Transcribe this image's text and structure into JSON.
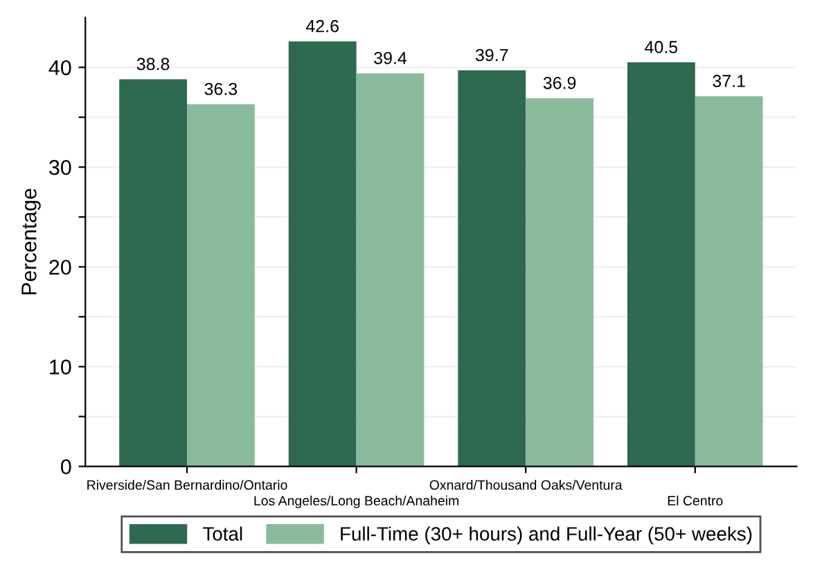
{
  "chart_data": {
    "type": "bar",
    "ylabel": "Percentage",
    "categories": [
      "Riverside/San Bernardino/Ontario",
      "Los Angeles/Long Beach/Anaheim",
      "Oxnard/Thousand Oaks/Ventura",
      "El Centro"
    ],
    "series": [
      {
        "name": "Total",
        "color": "#2d6a4f",
        "values": [
          38.8,
          42.6,
          39.7,
          40.5
        ]
      },
      {
        "name": "Full-Time (30+ hours) and Full-Year (50+ weeks)",
        "color": "#8aba9c",
        "values": [
          36.3,
          39.4,
          36.9,
          37.1
        ]
      }
    ],
    "ylim": [
      0,
      45
    ],
    "yticks": [
      0,
      {
        "value": 5,
        "label": null
      },
      10,
      {
        "value": 15,
        "label": null
      },
      20,
      {
        "value": 25,
        "label": null
      },
      30,
      {
        "value": 35,
        "label": null
      },
      40
    ],
    "grid": "y",
    "legend": "bottom",
    "data_labels": true
  }
}
